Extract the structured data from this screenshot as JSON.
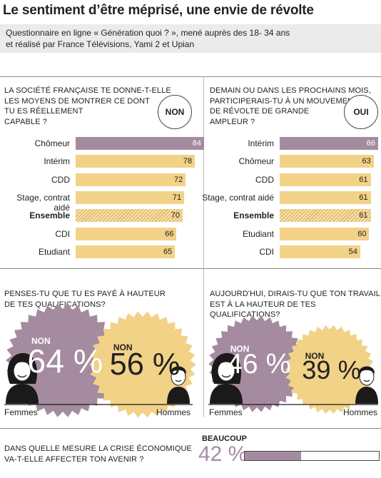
{
  "title": "Le sentiment d’être méprisé, une envie de révolte",
  "subtitle_line1": "Questionnaire en ligne « Génération quoi ? », mené auprès des 18- 34 ans",
  "subtitle_line2": "et réalisé par France Télévisions, Yami 2 et Upian",
  "colors": {
    "purple": "#a58ba0",
    "yellow": "#f2d287",
    "hatch": "#f2d287",
    "text": "#222",
    "dark": "#1a1a1a"
  },
  "chart_data": [
    {
      "type": "bar",
      "question": [
        "LA SOCIÉTÉ FRANÇAISE TE DONNE-T-ELLE",
        "LES MOYENS DE MONTRER CE DONT",
        "TU ES RÉELLEMENT",
        "CAPABLE ?"
      ],
      "answer": "NON",
      "categories": [
        "Chômeur",
        "Intérim",
        "CDD",
        "Stage, contrat aidé",
        "Ensemble",
        "CDI",
        "Etudiant"
      ],
      "values": [
        84,
        78,
        72,
        71,
        70,
        66,
        65
      ]
    },
    {
      "type": "bar",
      "question": [
        "DEMAIN OU DANS LES PROCHAINS MOIS,",
        "PARTICIPERAIS-TU À UN MOUVEMENT",
        "DE RÉVOLTE DE GRANDE",
        "AMPLEUR ?"
      ],
      "answer": "OUI",
      "categories": [
        "Intérim",
        "Chômeur",
        "CDD",
        "Stage, contrat aidé",
        "Ensemble",
        "Etudiant",
        "CDI"
      ],
      "values": [
        66,
        63,
        61,
        61,
        61,
        60,
        54
      ]
    },
    {
      "type": "bubble",
      "question": [
        "PENSES-TU QUE TU ES PAYÉ À HAUTEUR",
        "DE TES QUALIFICATIONS?"
      ],
      "series": [
        {
          "name": "Femmes",
          "answer": "NON",
          "value": 64,
          "label": "64 %"
        },
        {
          "name": "Hommes",
          "answer": "NON",
          "value": 56,
          "label": "56 %"
        }
      ]
    },
    {
      "type": "bubble",
      "question": [
        "AUJOURD'HUI, DIRAIS-TU QUE TON TRAVAIL",
        "EST À LA HAUTEUR DE TES QUALIFICATIONS?"
      ],
      "series": [
        {
          "name": "Femmes",
          "answer": "NON",
          "value": 46,
          "label": "46 %"
        },
        {
          "name": "Hommes",
          "answer": "NON",
          "value": 39,
          "label": "39 %"
        }
      ]
    },
    {
      "type": "progress",
      "question": [
        "DANS QUELLE MESURE LA CRISE ÉCONOMIQUE",
        "VA-T-ELLE AFFECTER TON AVENIR ?"
      ],
      "answer": "BEAUCOUP",
      "value": 42,
      "label": "42 %"
    }
  ]
}
